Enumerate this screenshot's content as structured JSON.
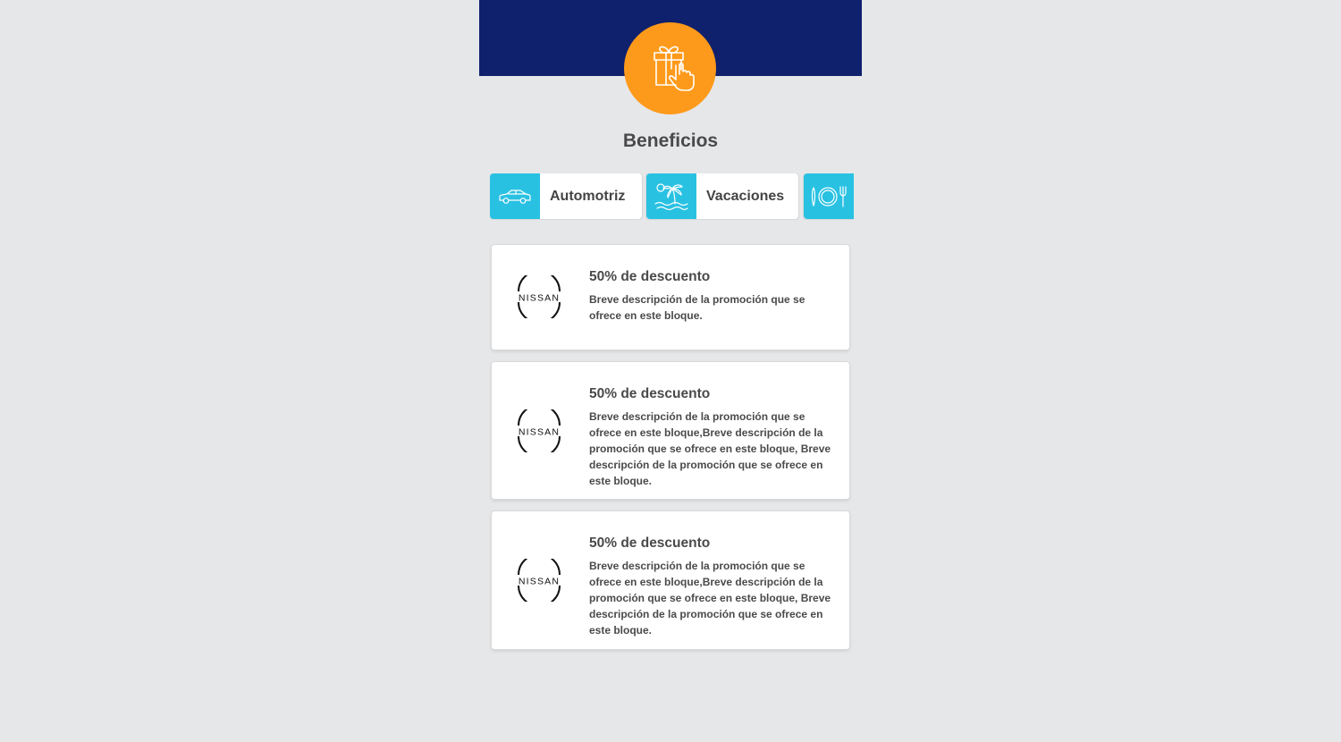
{
  "colors": {
    "header": "#0f206c",
    "accent_orange": "#fe9a1b",
    "chip_icon_bg": "#29c1e2",
    "page_bg": "#e6e7e9"
  },
  "hero": {
    "icon": "gift-hand-icon"
  },
  "page": {
    "title": "Beneficios"
  },
  "categories": [
    {
      "label": "Automotriz",
      "icon": "car-icon"
    },
    {
      "label": "Vacaciones",
      "icon": "palm-beach-icon"
    },
    {
      "label": "",
      "icon": "restaurant-icon"
    }
  ],
  "promos": [
    {
      "logo": "nissan-logo",
      "logo_text": "NISSAN",
      "title": "50% de descuento",
      "description": "Breve descripción de la promoción que se ofrece en este bloque."
    },
    {
      "logo": "nissan-logo",
      "logo_text": "NISSAN",
      "title": "50% de descuento",
      "description": "Breve descripción de la promoción que se ofrece en este bloque,Breve descripción de la promoción que se ofrece en este bloque, Breve descripción de la promoción que se ofrece en este bloque."
    },
    {
      "logo": "nissan-logo",
      "logo_text": "NISSAN",
      "title": "50% de descuento",
      "description": "Breve descripción de la promoción que se ofrece en este bloque,Breve descripción de la promoción que se ofrece en este bloque, Breve descripción de la promoción que se ofrece en este bloque."
    }
  ]
}
